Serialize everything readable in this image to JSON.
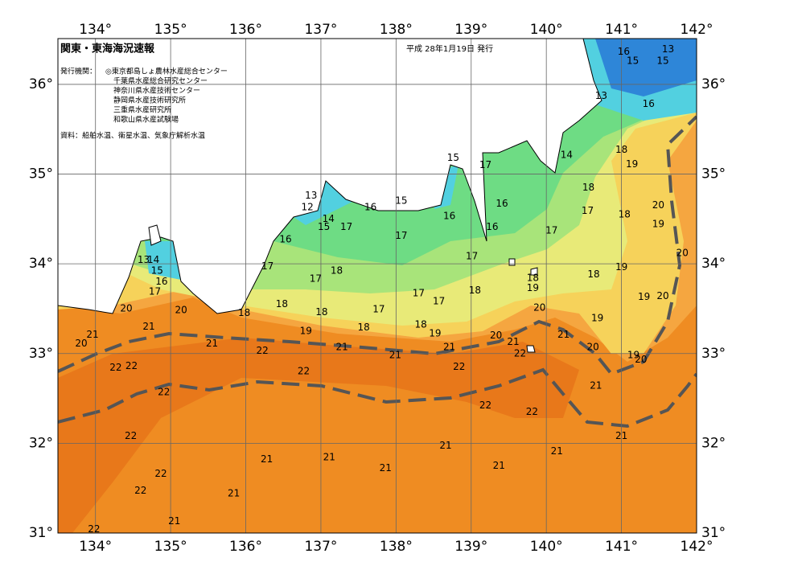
{
  "header": {
    "title": "関東・東海海況速報",
    "date": "平成 28年1月19日 発行",
    "issuer_label": "発行機関：",
    "issuers": [
      "◎東京都島しょ農林水産総合センター",
      "千葉県水産総合研究センター",
      "神奈川県水産技術センター",
      "静岡県水産技術研究所",
      "三重県水産研究所",
      "和歌山県水産試験場"
    ],
    "source": "資料：船舶水温、衛星水温、気象庁解析水温"
  },
  "map": {
    "lon_range": [
      133.5,
      142
    ],
    "lat_range": [
      31,
      36.51
    ],
    "lon_ticks": [
      {
        "value": 134,
        "label": "134°"
      },
      {
        "value": 135,
        "label": "135°"
      },
      {
        "value": 136,
        "label": "136°"
      },
      {
        "value": 137,
        "label": "137°"
      },
      {
        "value": 138,
        "label": "138°"
      },
      {
        "value": 139,
        "label": "139°"
      },
      {
        "value": 140,
        "label": "140°"
      },
      {
        "value": 141,
        "label": "141°"
      },
      {
        "value": 142,
        "label": "142°"
      }
    ],
    "lat_ticks": [
      {
        "value": 36,
        "label": "36°"
      },
      {
        "value": 35,
        "label": "35°"
      },
      {
        "value": 34,
        "label": "34°"
      },
      {
        "value": 33,
        "label": "33°"
      },
      {
        "value": 32,
        "label": "32°"
      },
      {
        "value": 31,
        "label": "31°"
      }
    ],
    "isotherm_labels": [
      {
        "lon": 141.03,
        "lat": 36.36,
        "value": 16
      },
      {
        "lon": 141.15,
        "lat": 36.26,
        "value": 15
      },
      {
        "lon": 141.62,
        "lat": 36.39,
        "value": 13
      },
      {
        "lon": 141.55,
        "lat": 36.26,
        "value": 15
      },
      {
        "lon": 140.73,
        "lat": 35.87,
        "value": 13
      },
      {
        "lon": 141.36,
        "lat": 35.78,
        "value": 16
      },
      {
        "lon": 140.27,
        "lat": 35.21,
        "value": 14
      },
      {
        "lon": 141.0,
        "lat": 35.27,
        "value": 18
      },
      {
        "lon": 141.14,
        "lat": 35.11,
        "value": 19
      },
      {
        "lon": 138.76,
        "lat": 35.18,
        "value": 15
      },
      {
        "lon": 139.19,
        "lat": 35.1,
        "value": 17
      },
      {
        "lon": 138.07,
        "lat": 34.7,
        "value": 15
      },
      {
        "lon": 136.87,
        "lat": 34.76,
        "value": 13
      },
      {
        "lon": 136.82,
        "lat": 34.63,
        "value": 12
      },
      {
        "lon": 137.66,
        "lat": 34.63,
        "value": 16
      },
      {
        "lon": 138.71,
        "lat": 34.53,
        "value": 16
      },
      {
        "lon": 139.41,
        "lat": 34.67,
        "value": 16
      },
      {
        "lon": 140.56,
        "lat": 34.85,
        "value": 18
      },
      {
        "lon": 140.55,
        "lat": 34.59,
        "value": 17
      },
      {
        "lon": 141.04,
        "lat": 34.55,
        "value": 18
      },
      {
        "lon": 141.49,
        "lat": 34.65,
        "value": 20
      },
      {
        "lon": 141.49,
        "lat": 34.44,
        "value": 19
      },
      {
        "lon": 137.1,
        "lat": 34.5,
        "value": 14
      },
      {
        "lon": 137.04,
        "lat": 34.41,
        "value": 15
      },
      {
        "lon": 137.34,
        "lat": 34.41,
        "value": 17
      },
      {
        "lon": 138.07,
        "lat": 34.31,
        "value": 17
      },
      {
        "lon": 139.28,
        "lat": 34.41,
        "value": 16
      },
      {
        "lon": 140.07,
        "lat": 34.37,
        "value": 17
      },
      {
        "lon": 136.53,
        "lat": 34.27,
        "value": 16
      },
      {
        "lon": 139.01,
        "lat": 34.08,
        "value": 17
      },
      {
        "lon": 141.81,
        "lat": 34.12,
        "value": 20
      },
      {
        "lon": 134.64,
        "lat": 34.04,
        "value": 13
      },
      {
        "lon": 134.77,
        "lat": 34.04,
        "value": 14
      },
      {
        "lon": 134.82,
        "lat": 33.92,
        "value": 15
      },
      {
        "lon": 134.88,
        "lat": 33.8,
        "value": 16
      },
      {
        "lon": 134.79,
        "lat": 33.69,
        "value": 17
      },
      {
        "lon": 136.29,
        "lat": 33.97,
        "value": 17
      },
      {
        "lon": 137.21,
        "lat": 33.92,
        "value": 18
      },
      {
        "lon": 136.93,
        "lat": 33.83,
        "value": 17
      },
      {
        "lon": 139.82,
        "lat": 33.84,
        "value": 18
      },
      {
        "lon": 139.82,
        "lat": 33.73,
        "value": 19
      },
      {
        "lon": 140.63,
        "lat": 33.88,
        "value": 18
      },
      {
        "lon": 141.0,
        "lat": 33.96,
        "value": 19
      },
      {
        "lon": 139.05,
        "lat": 33.7,
        "value": 18
      },
      {
        "lon": 138.3,
        "lat": 33.67,
        "value": 17
      },
      {
        "lon": 138.57,
        "lat": 33.58,
        "value": 17
      },
      {
        "lon": 136.48,
        "lat": 33.55,
        "value": 18
      },
      {
        "lon": 137.01,
        "lat": 33.46,
        "value": 18
      },
      {
        "lon": 137.77,
        "lat": 33.49,
        "value": 17
      },
      {
        "lon": 141.3,
        "lat": 33.63,
        "value": 19
      },
      {
        "lon": 141.55,
        "lat": 33.64,
        "value": 20
      },
      {
        "lon": 134.41,
        "lat": 33.5,
        "value": 20
      },
      {
        "lon": 135.14,
        "lat": 33.48,
        "value": 20
      },
      {
        "lon": 135.98,
        "lat": 33.45,
        "value": 18
      },
      {
        "lon": 139.91,
        "lat": 33.51,
        "value": 20
      },
      {
        "lon": 140.68,
        "lat": 33.39,
        "value": 19
      },
      {
        "lon": 137.57,
        "lat": 33.29,
        "value": 18
      },
      {
        "lon": 138.33,
        "lat": 33.32,
        "value": 18
      },
      {
        "lon": 136.8,
        "lat": 33.25,
        "value": 19
      },
      {
        "lon": 138.52,
        "lat": 33.22,
        "value": 19
      },
      {
        "lon": 139.33,
        "lat": 33.2,
        "value": 20
      },
      {
        "lon": 140.23,
        "lat": 33.21,
        "value": 21
      },
      {
        "lon": 133.96,
        "lat": 33.21,
        "value": 21
      },
      {
        "lon": 134.71,
        "lat": 33.3,
        "value": 21
      },
      {
        "lon": 133.81,
        "lat": 33.11,
        "value": 20
      },
      {
        "lon": 135.55,
        "lat": 33.11,
        "value": 21
      },
      {
        "lon": 137.28,
        "lat": 33.07,
        "value": 21
      },
      {
        "lon": 138.71,
        "lat": 33.07,
        "value": 21
      },
      {
        "lon": 139.56,
        "lat": 33.13,
        "value": 21
      },
      {
        "lon": 140.62,
        "lat": 33.07,
        "value": 20
      },
      {
        "lon": 141.16,
        "lat": 32.98,
        "value": 19
      },
      {
        "lon": 141.26,
        "lat": 32.93,
        "value": 20
      },
      {
        "lon": 136.22,
        "lat": 33.03,
        "value": 22
      },
      {
        "lon": 137.99,
        "lat": 32.98,
        "value": 21
      },
      {
        "lon": 139.65,
        "lat": 33.0,
        "value": 22
      },
      {
        "lon": 134.27,
        "lat": 32.84,
        "value": 22
      },
      {
        "lon": 134.48,
        "lat": 32.86,
        "value": 22
      },
      {
        "lon": 136.77,
        "lat": 32.8,
        "value": 22
      },
      {
        "lon": 138.84,
        "lat": 32.85,
        "value": 22
      },
      {
        "lon": 134.91,
        "lat": 32.57,
        "value": 22
      },
      {
        "lon": 140.66,
        "lat": 32.64,
        "value": 21
      },
      {
        "lon": 139.19,
        "lat": 32.42,
        "value": 22
      },
      {
        "lon": 139.81,
        "lat": 32.35,
        "value": 22
      },
      {
        "lon": 134.47,
        "lat": 32.08,
        "value": 22
      },
      {
        "lon": 141.0,
        "lat": 32.08,
        "value": 21
      },
      {
        "lon": 138.66,
        "lat": 31.97,
        "value": 21
      },
      {
        "lon": 140.14,
        "lat": 31.91,
        "value": 21
      },
      {
        "lon": 136.28,
        "lat": 31.82,
        "value": 21
      },
      {
        "lon": 137.11,
        "lat": 31.84,
        "value": 21
      },
      {
        "lon": 137.86,
        "lat": 31.72,
        "value": 21
      },
      {
        "lon": 139.37,
        "lat": 31.75,
        "value": 21
      },
      {
        "lon": 134.87,
        "lat": 31.66,
        "value": 22
      },
      {
        "lon": 134.6,
        "lat": 31.47,
        "value": 22
      },
      {
        "lon": 135.84,
        "lat": 31.44,
        "value": 21
      },
      {
        "lon": 135.05,
        "lat": 31.13,
        "value": 21
      },
      {
        "lon": 133.98,
        "lat": 31.04,
        "value": 22
      }
    ]
  }
}
